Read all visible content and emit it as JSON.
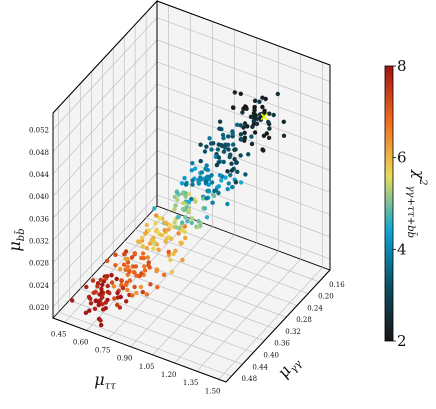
{
  "chart_data": {
    "type": "scatter",
    "projection": "3d",
    "x_axis": {
      "label": "μττ",
      "range": [
        0.37,
        1.55
      ],
      "ticks": [
        "0.45",
        "0.60",
        "0.75",
        "0.90",
        "1.05",
        "1.20",
        "1.35",
        "1.50"
      ]
    },
    "y_axis": {
      "label": "μγγ",
      "range": [
        0.12,
        0.5
      ],
      "ticks": [
        "0.16",
        "0.20",
        "0.24",
        "0.28",
        "0.32",
        "0.36",
        "0.40",
        "0.44",
        "0.48"
      ]
    },
    "z_axis": {
      "label": "μbb̄",
      "range": [
        0.018,
        0.055
      ],
      "ticks": [
        "0.020",
        "0.024",
        "0.028",
        "0.032",
        "0.036",
        "0.040",
        "0.044",
        "0.048",
        "0.052"
      ]
    },
    "colorbar": {
      "label": "χ²γγ+ττ+bb̄",
      "range": [
        2,
        8
      ],
      "ticks": [
        "2",
        "4",
        "6",
        "8"
      ],
      "colormap": [
        "#1a1414",
        "#0b4f63",
        "#0aa5d8",
        "#e8dc5a",
        "#f26b1d",
        "#a11414"
      ]
    },
    "best_fit_marker": {
      "x": 1.25,
      "y": 0.2,
      "z": 0.047,
      "color": "#e6ff00"
    },
    "point_bands": [
      {
        "x_center": 0.62,
        "y_center": 0.45,
        "z_center": 0.022,
        "chi2": 7.8,
        "count": 55
      },
      {
        "x_center": 0.78,
        "y_center": 0.42,
        "z_center": 0.026,
        "chi2": 7.0,
        "count": 55
      },
      {
        "x_center": 0.9,
        "y_center": 0.38,
        "z_center": 0.031,
        "chi2": 6.0,
        "count": 55
      },
      {
        "x_center": 0.98,
        "y_center": 0.34,
        "z_center": 0.035,
        "chi2": 5.0,
        "count": 55
      },
      {
        "x_center": 1.05,
        "y_center": 0.3,
        "z_center": 0.039,
        "chi2": 4.0,
        "count": 55
      },
      {
        "x_center": 1.12,
        "y_center": 0.26,
        "z_center": 0.043,
        "chi2": 3.2,
        "count": 55
      },
      {
        "x_center": 1.2,
        "y_center": 0.21,
        "z_center": 0.047,
        "chi2": 2.4,
        "count": 55
      }
    ]
  }
}
